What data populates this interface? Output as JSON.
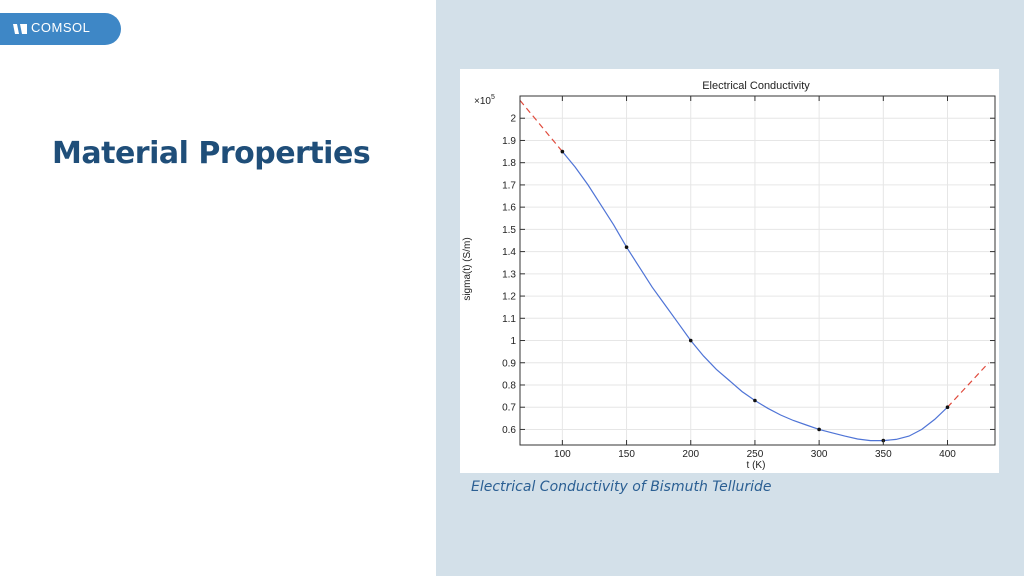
{
  "logo": {
    "text": "COMSOL"
  },
  "page_title": "Material Properties",
  "caption": "Electrical Conductivity of Bismuth Telluride",
  "colors": {
    "accent": "#3e87c6",
    "title": "#1f4e79",
    "panel": "#d3e0e9",
    "curve": "#4f74d6",
    "extrapolation": "#e04a3c"
  },
  "chart_data": {
    "type": "line",
    "title": "Electrical Conductivity",
    "xlabel": "t (K)",
    "ylabel": "sigma(t) (S/m)",
    "y_multiplier": "×10",
    "y_exponent": "5",
    "xlim": [
      67,
      437
    ],
    "ylim": [
      0.53,
      2.1
    ],
    "x_ticks": [
      100,
      150,
      200,
      250,
      300,
      350,
      400
    ],
    "y_ticks": [
      0.6,
      0.7,
      0.8,
      0.9,
      1,
      1.1,
      1.2,
      1.3,
      1.4,
      1.5,
      1.6,
      1.7,
      1.8,
      1.9,
      2
    ],
    "grid": true,
    "points": {
      "x": [
        100,
        150,
        200,
        250,
        300,
        350,
        400
      ],
      "y": [
        1.85,
        1.42,
        1.0,
        0.73,
        0.6,
        0.55,
        0.7
      ]
    },
    "curve": {
      "x": [
        100,
        110,
        120,
        130,
        140,
        150,
        160,
        170,
        180,
        190,
        200,
        210,
        220,
        230,
        240,
        250,
        260,
        270,
        280,
        290,
        300,
        310,
        320,
        330,
        340,
        350,
        360,
        370,
        380,
        390,
        400
      ],
      "y": [
        1.85,
        1.78,
        1.7,
        1.61,
        1.52,
        1.42,
        1.33,
        1.24,
        1.16,
        1.08,
        1.0,
        0.93,
        0.87,
        0.82,
        0.77,
        0.73,
        0.695,
        0.665,
        0.64,
        0.62,
        0.6,
        0.585,
        0.57,
        0.557,
        0.55,
        0.55,
        0.555,
        0.57,
        0.6,
        0.645,
        0.7
      ]
    },
    "extrapolation": [
      {
        "x": [
          67,
          100
        ],
        "y": [
          2.08,
          1.85
        ]
      },
      {
        "x": [
          400,
          432
        ],
        "y": [
          0.7,
          0.9
        ]
      }
    ]
  }
}
